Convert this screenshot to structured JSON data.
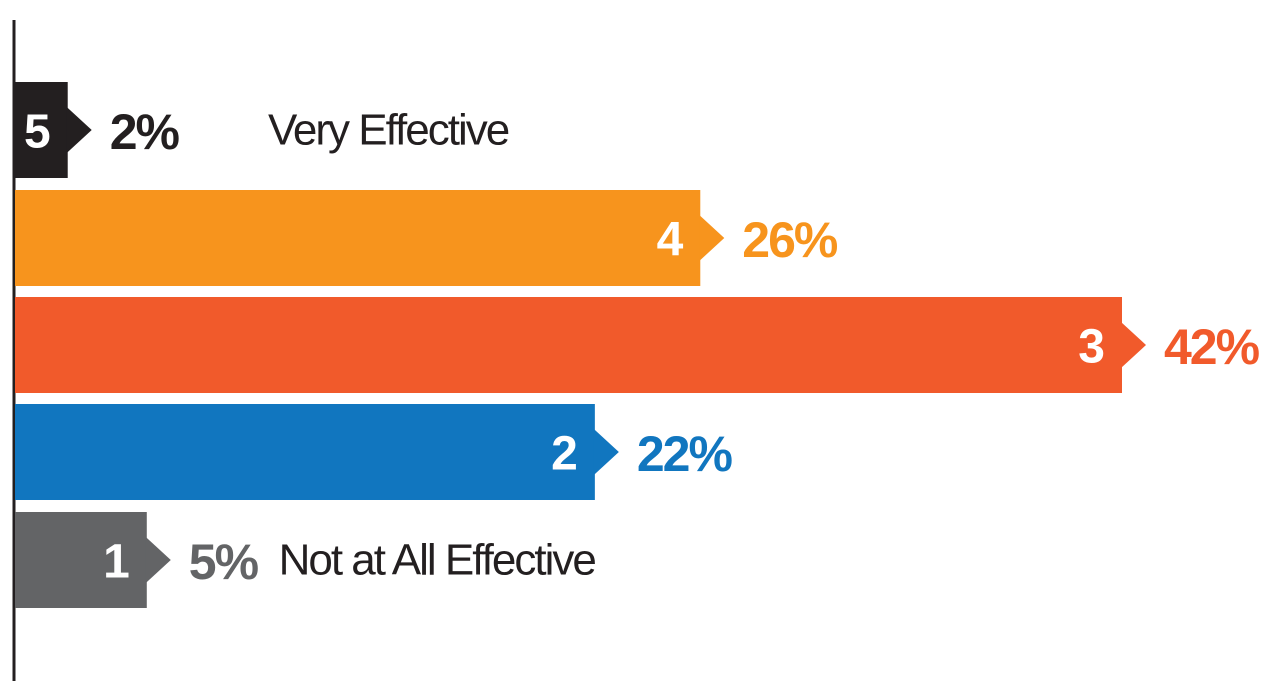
{
  "chart_data": {
    "type": "bar",
    "orientation": "horizontal",
    "categories": [
      "5",
      "4",
      "3",
      "2",
      "1"
    ],
    "values": [
      2,
      26,
      42,
      22,
      5
    ],
    "value_labels": [
      "2%",
      "26%",
      "42%",
      "22%",
      "5%"
    ],
    "colors": [
      "#231f20",
      "#f7941d",
      "#f15a2b",
      "#1176bf",
      "#636466"
    ],
    "annotations": [
      "Very Effective",
      "Not at All Effective"
    ]
  }
}
